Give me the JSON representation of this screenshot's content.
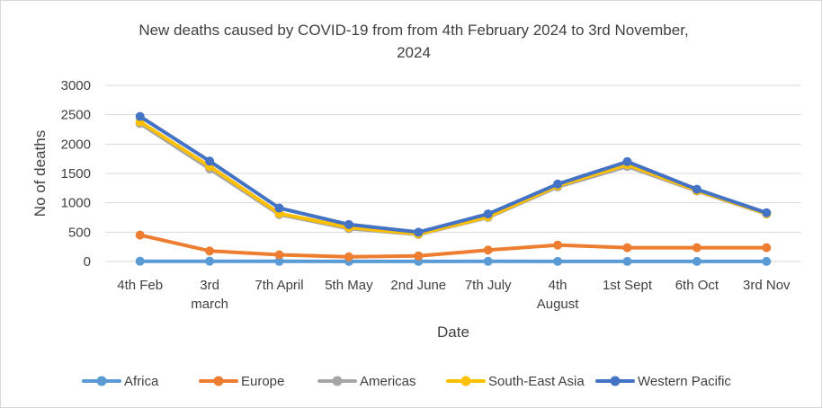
{
  "chart_data": {
    "type": "line",
    "title_lines": [
      "New deaths caused by COVID-19 from from 4th February 2024 to 3rd November,",
      "2024"
    ],
    "xlabel": "Date",
    "ylabel": "No of deaths",
    "ylim": [
      0,
      3000
    ],
    "yticks": [
      "0",
      "500",
      "1000",
      "1500",
      "2000",
      "2500",
      "3000"
    ],
    "categories": [
      [
        "4th Feb"
      ],
      [
        "3rd",
        "march"
      ],
      [
        "7th April"
      ],
      [
        "5th May"
      ],
      [
        "2nd June"
      ],
      [
        "7th July"
      ],
      [
        "4th",
        "August"
      ],
      [
        "1st Sept"
      ],
      [
        "6th Oct"
      ],
      [
        "3rd Nov"
      ]
    ],
    "grid": true,
    "legend_position": "bottom",
    "series": [
      {
        "name": "Africa",
        "color": "#5b9bd5",
        "values": [
          5,
          5,
          3,
          2,
          2,
          3,
          2,
          2,
          2,
          2
        ]
      },
      {
        "name": "Europe",
        "color": "#ed7d31",
        "values": [
          450,
          180,
          115,
          80,
          95,
          195,
          280,
          235,
          235,
          235
        ]
      },
      {
        "name": "Americas",
        "color": "#a5a5a5",
        "values": [
          2350,
          1580,
          800,
          560,
          460,
          750,
          1270,
          1620,
          1200,
          810
        ]
      },
      {
        "name": "South-East Asia",
        "color": "#ffc000",
        "values": [
          2380,
          1620,
          820,
          580,
          470,
          760,
          1290,
          1650,
          1210,
          815
        ]
      },
      {
        "name": "Western Pacific",
        "color": "#4472c4",
        "values": [
          2470,
          1710,
          910,
          630,
          500,
          810,
          1320,
          1700,
          1230,
          830
        ]
      }
    ]
  }
}
